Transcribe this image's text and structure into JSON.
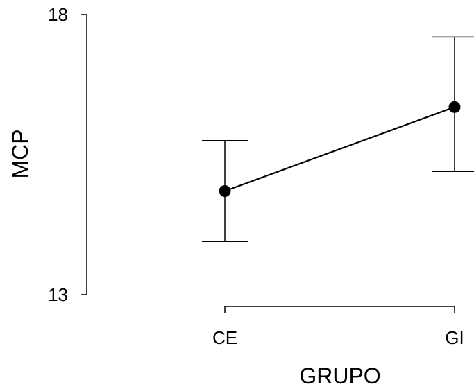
{
  "chart_data": {
    "type": "line",
    "title": "",
    "xlabel": "GRUPO",
    "ylabel": "MCP",
    "categories": [
      "CE",
      "GI"
    ],
    "series": [
      {
        "values": [
          14.85,
          16.35
        ],
        "error_lower": [
          13.95,
          15.2
        ],
        "error_upper": [
          15.75,
          17.6
        ]
      }
    ],
    "ylim": [
      13,
      18
    ],
    "y_ticks": [
      "13",
      "18"
    ],
    "grid": false,
    "legend": "none",
    "marker": "filled-circle",
    "colors": {
      "line": "#000000",
      "marker": "#000000",
      "background": "#ffffff"
    }
  }
}
